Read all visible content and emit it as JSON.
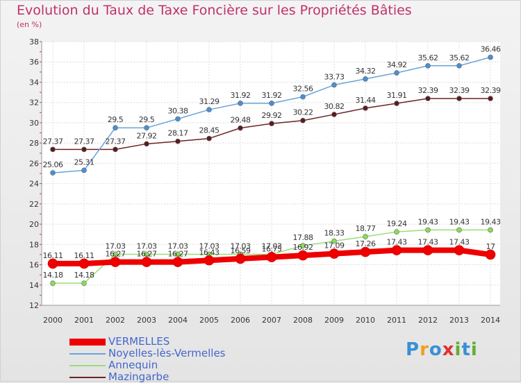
{
  "title": "Evolution du Taux de Taxe Foncière sur les Propriétés Bâties",
  "subtitle": "(en %)",
  "logo": [
    "P",
    "r",
    "o",
    "x",
    "i",
    "t",
    "i"
  ],
  "logo_colors": [
    "#3a8fd6",
    "#f0a020",
    "#3a8fd6",
    "#e03030",
    "#60b030",
    "#3a8fd6",
    "#60b030"
  ],
  "chart_data": {
    "type": "line",
    "x": [
      "2000",
      "2001",
      "2002",
      "2003",
      "2004",
      "2005",
      "2006",
      "2007",
      "2008",
      "2009",
      "2010",
      "2011",
      "2012",
      "2013",
      "2014"
    ],
    "ylim": [
      12,
      38
    ],
    "yticks": [
      12,
      14,
      16,
      18,
      20,
      22,
      24,
      26,
      28,
      30,
      32,
      34,
      36,
      38
    ],
    "grid": true,
    "legend_position": "bottom-left",
    "series": [
      {
        "name": "VERMELLES",
        "color": "#ee0000",
        "values": [
          16.11,
          16.11,
          16.27,
          16.27,
          16.27,
          16.43,
          16.59,
          16.75,
          16.92,
          17.09,
          17.26,
          17.43,
          17.43,
          17.43,
          17
        ],
        "labels": [
          "16.11",
          "16.11",
          "16.27",
          "16.27",
          "16.27",
          "16.43",
          "16.59",
          "16.75",
          "16.92",
          "17.09",
          "17.26",
          "17.43",
          "17.43",
          "17.43",
          "17"
        ]
      },
      {
        "name": "Noyelles-lès-Vermelles",
        "color": "#6aa3d8",
        "values": [
          25.06,
          25.31,
          29.5,
          29.5,
          30.38,
          31.29,
          31.92,
          31.92,
          32.56,
          33.73,
          34.32,
          34.92,
          35.62,
          35.62,
          36.46
        ],
        "labels": [
          "25.06",
          "25.31",
          "29.5",
          "29.5",
          "30.38",
          "31.29",
          "31.92",
          "31.92",
          "32.56",
          "33.73",
          "34.32",
          "34.92",
          "35.62",
          "35.62",
          "36.46"
        ]
      },
      {
        "name": "Annequin",
        "color": "#99dd77",
        "values": [
          14.18,
          14.18,
          17.03,
          17.03,
          17.03,
          17.03,
          17.03,
          17.03,
          17.88,
          18.33,
          18.77,
          19.24,
          19.43,
          19.43,
          19.43
        ],
        "labels": [
          "14.18",
          "14.18",
          "17.03",
          "17.03",
          "17.03",
          "17.03",
          "17.03",
          "17.03",
          "17.88",
          "18.33",
          "18.77",
          "19.24",
          "19.43",
          "19.43",
          "19.43"
        ]
      },
      {
        "name": "Mazingarbe",
        "color": "#6b2222",
        "values": [
          27.37,
          27.37,
          27.37,
          27.92,
          28.17,
          28.45,
          29.48,
          29.92,
          30.22,
          30.82,
          31.44,
          31.91,
          32.39,
          32.39,
          32.39
        ],
        "labels": [
          "27.37",
          "27.37",
          "27.37",
          "27.92",
          "28.17",
          "28.45",
          "29.48",
          "29.92",
          "30.22",
          "30.82",
          "31.44",
          "31.91",
          "32.39",
          "32.39",
          "32.39"
        ]
      }
    ]
  }
}
